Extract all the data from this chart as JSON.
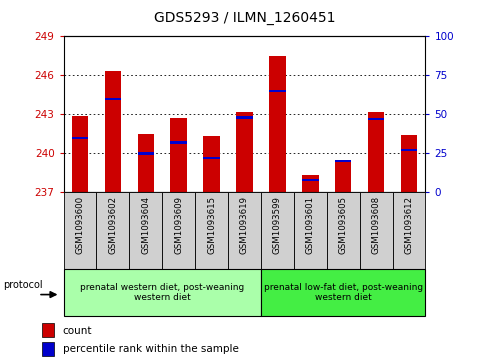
{
  "title": "GDS5293 / ILMN_1260451",
  "samples": [
    "GSM1093600",
    "GSM1093602",
    "GSM1093604",
    "GSM1093609",
    "GSM1093615",
    "GSM1093619",
    "GSM1093599",
    "GSM1093601",
    "GSM1093605",
    "GSM1093608",
    "GSM1093612"
  ],
  "count_values": [
    242.9,
    246.3,
    241.5,
    242.7,
    241.3,
    243.2,
    247.5,
    238.3,
    239.3,
    243.2,
    241.4
  ],
  "percentile_values": [
    35,
    60,
    25,
    32,
    22,
    48,
    65,
    8,
    20,
    47,
    27
  ],
  "y_min": 237,
  "y_max": 249,
  "y_ticks": [
    237,
    240,
    243,
    246,
    249
  ],
  "right_y_ticks": [
    0,
    25,
    50,
    75,
    100
  ],
  "bar_color": "#cc0000",
  "blue_color": "#0000cc",
  "group1_label": "prenatal western diet, post-weaning\nwestern diet",
  "group2_label": "prenatal low-fat diet, post-weaning\nwestern diet",
  "group1_count": 6,
  "group2_count": 5,
  "group1_bg": "#aaffaa",
  "group2_bg": "#44ee44",
  "sample_bg": "#d0d0d0",
  "legend_count": "count",
  "legend_pct": "percentile rank within the sample",
  "protocol_label": "protocol",
  "left_tick_color": "#cc0000",
  "right_tick_color": "#0000cc",
  "bar_width": 0.5,
  "title_fontsize": 10
}
